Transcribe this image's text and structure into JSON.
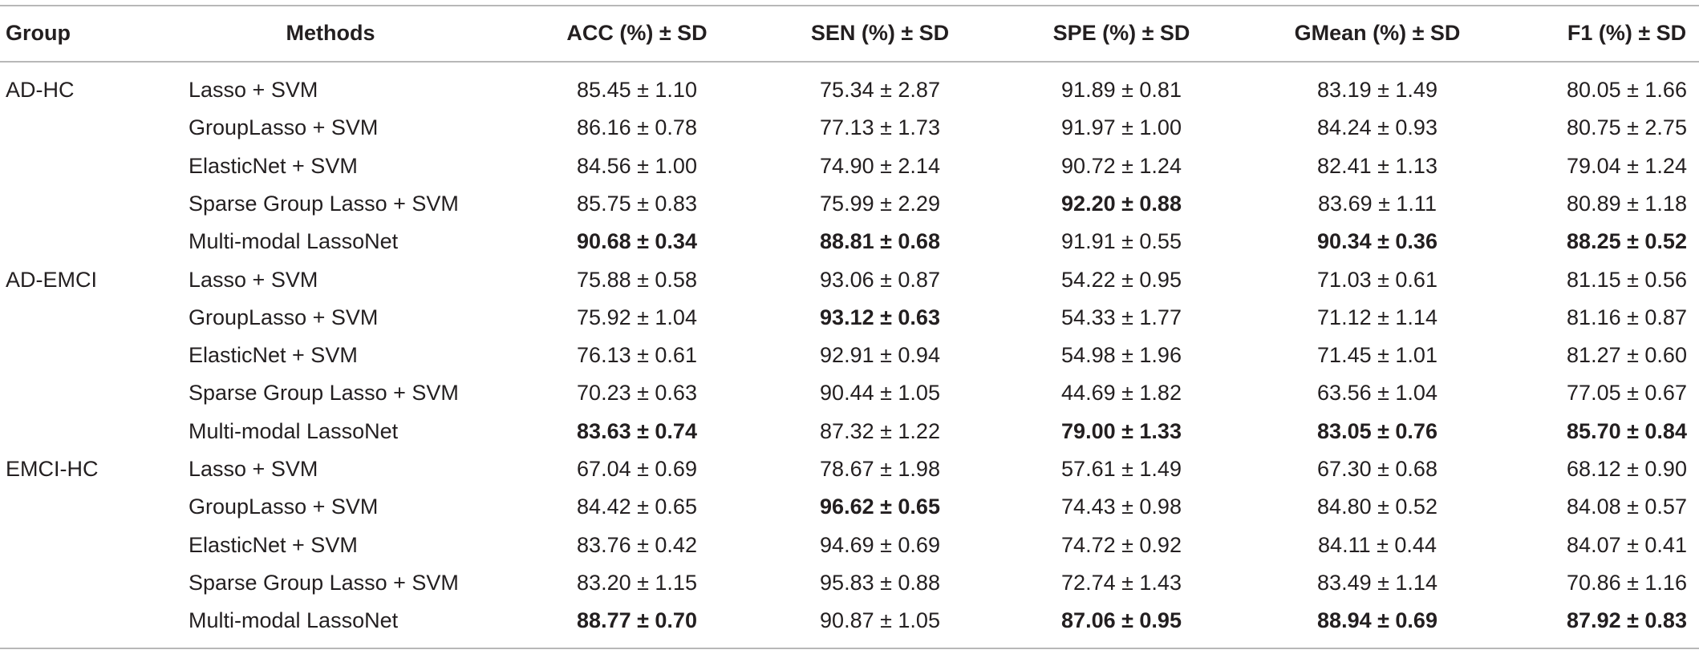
{
  "table": {
    "header": [
      "Group",
      "Methods",
      "ACC (%) ± SD",
      "SEN (%) ± SD",
      "SPE (%) ± SD",
      "GMean (%) ± SD",
      "F1 (%) ± SD"
    ],
    "groups": [
      {
        "name": "AD-HC",
        "rows": [
          {
            "method": "Lasso + SVM",
            "cells": [
              "85.45 ± 1.10",
              "75.34 ± 2.87",
              "91.89 ± 0.81",
              "83.19 ± 1.49",
              "80.05 ± 1.66"
            ],
            "bold": []
          },
          {
            "method": "GroupLasso + SVM",
            "cells": [
              "86.16 ± 0.78",
              "77.13 ± 1.73",
              "91.97 ± 1.00",
              "84.24 ± 0.93",
              "80.75 ± 2.75"
            ],
            "bold": []
          },
          {
            "method": "ElasticNet + SVM",
            "cells": [
              "84.56 ± 1.00",
              "74.90 ± 2.14",
              "90.72 ± 1.24",
              "82.41 ± 1.13",
              "79.04 ± 1.24"
            ],
            "bold": []
          },
          {
            "method": "Sparse Group Lasso + SVM",
            "cells": [
              "85.75 ± 0.83",
              "75.99 ± 2.29",
              "92.20 ± 0.88",
              "83.69 ± 1.11",
              "80.89 ± 1.18"
            ],
            "bold": [
              2
            ]
          },
          {
            "method": "Multi-modal LassoNet",
            "cells": [
              "90.68 ± 0.34",
              "88.81 ± 0.68",
              "91.91 ± 0.55",
              "90.34 ± 0.36",
              "88.25 ± 0.52"
            ],
            "bold": [
              0,
              1,
              3,
              4
            ]
          }
        ]
      },
      {
        "name": "AD-EMCI",
        "rows": [
          {
            "method": "Lasso + SVM",
            "cells": [
              "75.88 ± 0.58",
              "93.06 ± 0.87",
              "54.22 ± 0.95",
              "71.03 ± 0.61",
              "81.15 ± 0.56"
            ],
            "bold": []
          },
          {
            "method": "GroupLasso + SVM",
            "cells": [
              "75.92 ± 1.04",
              "93.12 ± 0.63",
              "54.33 ± 1.77",
              "71.12 ± 1.14",
              "81.16 ± 0.87"
            ],
            "bold": [
              1
            ]
          },
          {
            "method": "ElasticNet + SVM",
            "cells": [
              "76.13 ± 0.61",
              "92.91 ± 0.94",
              "54.98 ± 1.96",
              "71.45 ± 1.01",
              "81.27 ± 0.60"
            ],
            "bold": []
          },
          {
            "method": "Sparse Group Lasso + SVM",
            "cells": [
              "70.23 ± 0.63",
              "90.44 ± 1.05",
              "44.69 ± 1.82",
              "63.56 ± 1.04",
              "77.05 ± 0.67"
            ],
            "bold": []
          },
          {
            "method": "Multi-modal LassoNet",
            "cells": [
              "83.63 ± 0.74",
              "87.32 ± 1.22",
              "79.00 ± 1.33",
              "83.05 ± 0.76",
              "85.70 ± 0.84"
            ],
            "bold": [
              0,
              2,
              3,
              4
            ]
          }
        ]
      },
      {
        "name": "EMCI-HC",
        "rows": [
          {
            "method": "Lasso + SVM",
            "cells": [
              "67.04 ± 0.69",
              "78.67 ± 1.98",
              "57.61 ± 1.49",
              "67.30 ± 0.68",
              "68.12 ± 0.90"
            ],
            "bold": []
          },
          {
            "method": "GroupLasso + SVM",
            "cells": [
              "84.42 ± 0.65",
              "96.62 ± 0.65",
              "74.43 ± 0.98",
              "84.80 ± 0.52",
              "84.08 ± 0.57"
            ],
            "bold": [
              1
            ]
          },
          {
            "method": "ElasticNet + SVM",
            "cells": [
              "83.76 ± 0.42",
              "94.69 ± 0.69",
              "74.72 ± 0.92",
              "84.11 ± 0.44",
              "84.07 ± 0.41"
            ],
            "bold": []
          },
          {
            "method": "Sparse Group Lasso + SVM",
            "cells": [
              "83.20 ± 1.15",
              "95.83 ± 0.88",
              "72.74 ± 1.43",
              "83.49 ± 1.14",
              "70.86 ± 1.16"
            ],
            "bold": []
          },
          {
            "method": "Multi-modal LassoNet",
            "cells": [
              "88.77 ± 0.70",
              "90.87 ± 1.05",
              "87.06 ± 0.95",
              "88.94 ± 0.69",
              "87.92 ± 0.83"
            ],
            "bold": [
              0,
              2,
              3,
              4
            ]
          }
        ]
      }
    ]
  }
}
